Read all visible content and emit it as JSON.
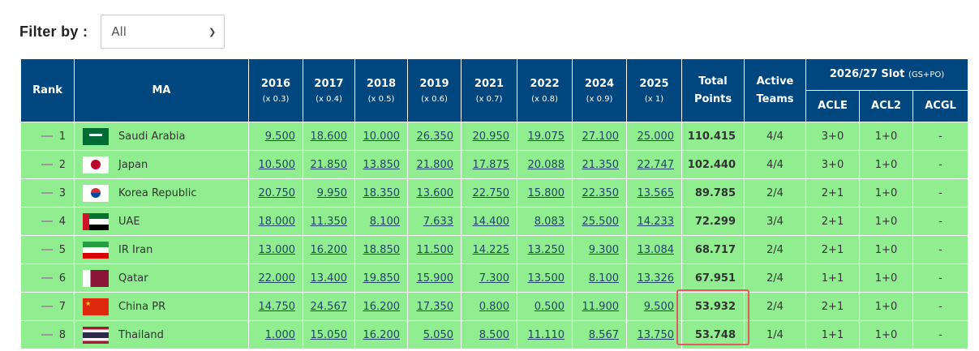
{
  "filter": {
    "label": "Filter by :",
    "selected": "All"
  },
  "headers": {
    "rank": "Rank",
    "ma": "MA",
    "years": [
      {
        "year": "2016",
        "mult": "(x 0.3)"
      },
      {
        "year": "2017",
        "mult": "(x 0.4)"
      },
      {
        "year": "2018",
        "mult": "(x 0.5)"
      },
      {
        "year": "2019",
        "mult": "(x 0.6)"
      },
      {
        "year": "2021",
        "mult": "(x 0.7)"
      },
      {
        "year": "2022",
        "mult": "(x 0.8)"
      },
      {
        "year": "2024",
        "mult": "(x 0.9)"
      },
      {
        "year": "2025",
        "mult": "(x 1)"
      }
    ],
    "total": "Total Points",
    "active": "Active Teams",
    "slot": "2026/27 Slot",
    "slot_note": "(GS+PO)",
    "acle": "ACLE",
    "acl2": "ACL2",
    "acgl": "ACGL"
  },
  "rows": [
    {
      "rank": "1",
      "ma": "Saudi Arabia",
      "flag": "saudi-arabia",
      "scores": [
        "9.500",
        "18.600",
        "10.000",
        "26.350",
        "20.950",
        "19.075",
        "27.100",
        "25.000"
      ],
      "total": "110.415",
      "active": "4/4",
      "acle": "3+0",
      "acl2": "1+0",
      "acgl": "-"
    },
    {
      "rank": "2",
      "ma": "Japan",
      "flag": "japan",
      "scores": [
        "10.500",
        "21.850",
        "13.850",
        "21.800",
        "17.875",
        "20.088",
        "21.350",
        "22.747"
      ],
      "total": "102.440",
      "active": "4/4",
      "acle": "3+0",
      "acl2": "1+0",
      "acgl": "-"
    },
    {
      "rank": "3",
      "ma": "Korea Republic",
      "flag": "korea",
      "scores": [
        "20.750",
        "9.950",
        "18.350",
        "13.600",
        "22.750",
        "15.800",
        "22.350",
        "13.565"
      ],
      "total": "89.785",
      "active": "2/4",
      "acle": "2+1",
      "acl2": "1+0",
      "acgl": "-"
    },
    {
      "rank": "4",
      "ma": "UAE",
      "flag": "uae",
      "scores": [
        "18.000",
        "11.350",
        "8.100",
        "7.633",
        "14.400",
        "8.083",
        "25.500",
        "14.233"
      ],
      "total": "72.299",
      "active": "3/4",
      "acle": "2+1",
      "acl2": "1+0",
      "acgl": "-"
    },
    {
      "rank": "5",
      "ma": "IR Iran",
      "flag": "iran",
      "scores": [
        "13.000",
        "16.200",
        "18.850",
        "11.500",
        "14.225",
        "13.250",
        "9.300",
        "13.084"
      ],
      "total": "68.717",
      "active": "2/4",
      "acle": "2+1",
      "acl2": "1+0",
      "acgl": "-"
    },
    {
      "rank": "6",
      "ma": "Qatar",
      "flag": "qatar",
      "scores": [
        "22.000",
        "13.400",
        "19.850",
        "15.900",
        "7.300",
        "13.500",
        "8.100",
        "13.326"
      ],
      "total": "67.951",
      "active": "2/4",
      "acle": "1+1",
      "acl2": "1+0",
      "acgl": "-"
    },
    {
      "rank": "7",
      "ma": "China PR",
      "flag": "china",
      "scores": [
        "14.750",
        "24.567",
        "16.200",
        "17.350",
        "0.800",
        "0.500",
        "11.900",
        "9.500"
      ],
      "total": "53.932",
      "active": "2/4",
      "acle": "2+1",
      "acl2": "1+0",
      "acgl": "-"
    },
    {
      "rank": "8",
      "ma": "Thailand",
      "flag": "thailand",
      "scores": [
        "1.000",
        "15.050",
        "16.200",
        "5.050",
        "8.500",
        "11.110",
        "8.567",
        "13.750"
      ],
      "total": "53.748",
      "active": "1/4",
      "acle": "1+1",
      "acl2": "1+0",
      "acgl": "-"
    }
  ],
  "colors": {
    "header": "#00467f",
    "row": "#90ee90",
    "highlight": "#e05a60"
  }
}
